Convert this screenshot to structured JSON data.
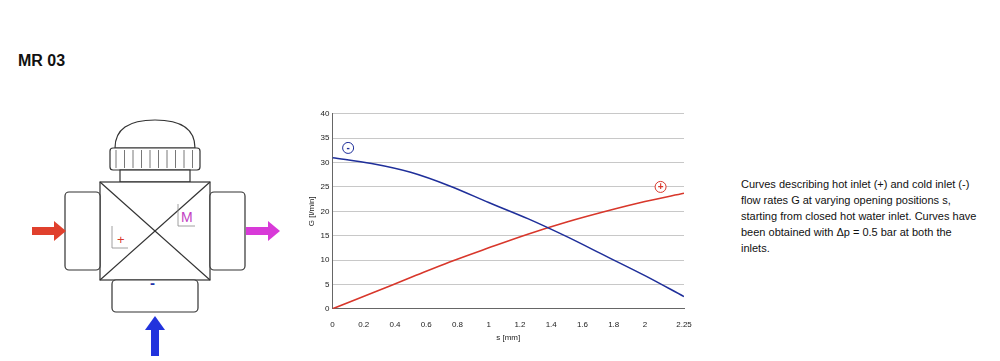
{
  "header": {
    "title": "MR 03"
  },
  "diagram": {
    "hot_label": "+",
    "cold_label": "-",
    "mixed_label": "M"
  },
  "description": "Curves describing hot inlet (+) and cold inlet (-) flow rates G at varying opening positions s, starting from closed hot water inlet. Curves have been obtained with Δp = 0.5 bar at both the inlets.",
  "chart_data": {
    "type": "line",
    "x_label": "s [mm]",
    "y_label": "G [l/min]",
    "x": [
      0,
      0.25,
      0.5,
      0.75,
      1.0,
      1.25,
      1.5,
      1.75,
      2.0,
      2.25
    ],
    "series": [
      {
        "name": "-",
        "color": "#1f2f9a",
        "values": [
          31,
          29.8,
          28,
          25.2,
          21.8,
          18.5,
          14.8,
          10.8,
          6.8,
          2.5
        ]
      },
      {
        "name": "+",
        "color": "#d8372b",
        "values": [
          0,
          3.2,
          6.4,
          9.6,
          12.5,
          15.3,
          17.8,
          20.0,
          22.0,
          23.7
        ]
      }
    ],
    "annotations": [
      {
        "text": "-",
        "x": 0.1,
        "y": 33
      },
      {
        "text": "+",
        "x": 2.1,
        "y": 25
      }
    ],
    "xlim": [
      0,
      2.25
    ],
    "xticks": [
      0,
      0.2,
      0.4,
      0.6,
      0.8,
      1,
      1.2,
      1.4,
      1.6,
      1.8,
      2,
      2.25
    ],
    "ylim": [
      0,
      40
    ],
    "yticks": [
      0,
      5,
      10,
      15,
      20,
      25,
      30,
      35,
      40
    ],
    "grid": true
  }
}
